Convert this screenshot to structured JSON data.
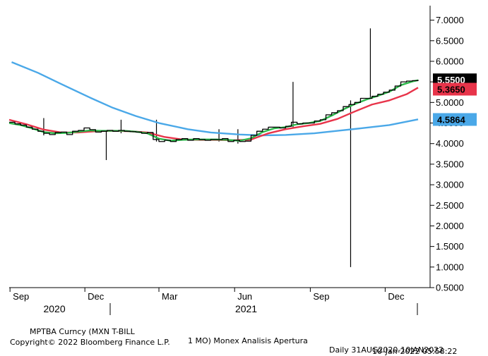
{
  "chart_data": {
    "type": "line",
    "ylim": [
      0.5,
      7.25
    ],
    "y_ticks": [
      0.5,
      1.0,
      1.5,
      2.0,
      2.5,
      3.0,
      3.5,
      4.0,
      4.5,
      5.0,
      5.5,
      6.0,
      6.5,
      7.0
    ],
    "y_tick_labels": [
      "0.5000",
      "1.0000",
      "1.5000",
      "2.0000",
      "2.5000",
      "3.0000",
      "3.5000",
      "4.0000",
      "4.5000",
      "5.0000",
      "5.5000",
      "6.0000",
      "6.5000",
      "7.0000"
    ],
    "x_range": [
      "2020-08-31",
      "2022-01-10"
    ],
    "x_ticks": [
      {
        "label": "Sep",
        "date": "2020-09-01"
      },
      {
        "label": "Dec",
        "date": "2020-12-01"
      },
      {
        "label": "Mar",
        "date": "2021-03-01"
      },
      {
        "label": "Jun",
        "date": "2021-06-01"
      },
      {
        "label": "Sep",
        "date": "2021-09-01"
      },
      {
        "label": "Dec",
        "date": "2021-12-01"
      }
    ],
    "year_labels": [
      {
        "label": "2020",
        "date": "2020-10-25"
      },
      {
        "label": "2021",
        "date": "2021-06-15"
      }
    ],
    "grid": false,
    "series": [
      {
        "color": "#000000",
        "points": [
          [
            "2020-08-31",
            4.52
          ],
          [
            "2020-09-07",
            4.48
          ],
          [
            "2020-09-14",
            4.45
          ],
          [
            "2020-09-21",
            4.4
          ],
          [
            "2020-09-28",
            4.35
          ],
          [
            "2020-10-05",
            4.3
          ],
          [
            "2020-10-12",
            4.25
          ],
          [
            "2020-10-19",
            4.22
          ],
          [
            "2020-10-26",
            4.27
          ],
          [
            "2020-11-02",
            4.28
          ],
          [
            "2020-11-09",
            4.22
          ],
          [
            "2020-11-16",
            4.3
          ],
          [
            "2020-11-23",
            4.32
          ],
          [
            "2020-11-30",
            4.38
          ],
          [
            "2020-12-07",
            4.34
          ],
          [
            "2020-12-14",
            4.28
          ],
          [
            "2020-12-21",
            4.3
          ],
          [
            "2020-12-28",
            4.32
          ],
          [
            "2021-01-04",
            4.3
          ],
          [
            "2021-01-11",
            4.32
          ],
          [
            "2021-01-18",
            4.3
          ],
          [
            "2021-01-25",
            4.29
          ],
          [
            "2021-02-01",
            4.28
          ],
          [
            "2021-02-08",
            4.25
          ],
          [
            "2021-02-15",
            4.27
          ],
          [
            "2021-02-22",
            4.1
          ],
          [
            "2021-03-01",
            4.05
          ],
          [
            "2021-03-08",
            4.08
          ],
          [
            "2021-03-15",
            4.05
          ],
          [
            "2021-03-22",
            4.1
          ],
          [
            "2021-03-29",
            4.12
          ],
          [
            "2021-04-05",
            4.08
          ],
          [
            "2021-04-12",
            4.12
          ],
          [
            "2021-04-19",
            4.1
          ],
          [
            "2021-04-26",
            4.08
          ],
          [
            "2021-05-03",
            4.1
          ],
          [
            "2021-05-10",
            4.1
          ],
          [
            "2021-05-17",
            4.12
          ],
          [
            "2021-05-24",
            4.05
          ],
          [
            "2021-05-31",
            4.08
          ],
          [
            "2021-06-07",
            4.05
          ],
          [
            "2021-06-14",
            4.06
          ],
          [
            "2021-06-21",
            4.2
          ],
          [
            "2021-06-28",
            4.3
          ],
          [
            "2021-07-05",
            4.35
          ],
          [
            "2021-07-12",
            4.4
          ],
          [
            "2021-07-19",
            4.4
          ],
          [
            "2021-07-26",
            4.38
          ],
          [
            "2021-08-02",
            4.42
          ],
          [
            "2021-08-09",
            4.52
          ],
          [
            "2021-08-16",
            4.48
          ],
          [
            "2021-08-23",
            4.5
          ],
          [
            "2021-08-30",
            4.5
          ],
          [
            "2021-09-06",
            4.55
          ],
          [
            "2021-09-13",
            4.58
          ],
          [
            "2021-09-20",
            4.7
          ],
          [
            "2021-09-27",
            4.75
          ],
          [
            "2021-10-04",
            4.8
          ],
          [
            "2021-10-11",
            4.9
          ],
          [
            "2021-10-18",
            4.95
          ],
          [
            "2021-10-25",
            5.0
          ],
          [
            "2021-11-01",
            5.1
          ],
          [
            "2021-11-08",
            5.1
          ],
          [
            "2021-11-15",
            5.15
          ],
          [
            "2021-11-22",
            5.2
          ],
          [
            "2021-11-29",
            5.25
          ],
          [
            "2021-12-06",
            5.3
          ],
          [
            "2021-12-13",
            5.4
          ],
          [
            "2021-12-20",
            5.5
          ],
          [
            "2021-12-27",
            5.52
          ],
          [
            "2022-01-03",
            5.53
          ],
          [
            "2022-01-10",
            5.55
          ]
        ]
      },
      {
        "color": "#2db84b",
        "points": [
          [
            "2020-08-31",
            4.5
          ],
          [
            "2020-09-14",
            4.45
          ],
          [
            "2020-09-28",
            4.37
          ],
          [
            "2020-10-12",
            4.28
          ],
          [
            "2020-10-26",
            4.25
          ],
          [
            "2020-11-09",
            4.26
          ],
          [
            "2020-11-23",
            4.29
          ],
          [
            "2020-12-07",
            4.32
          ],
          [
            "2020-12-21",
            4.31
          ],
          [
            "2021-01-04",
            4.31
          ],
          [
            "2021-01-18",
            4.31
          ],
          [
            "2021-02-01",
            4.29
          ],
          [
            "2021-02-15",
            4.25
          ],
          [
            "2021-03-01",
            4.12
          ],
          [
            "2021-03-15",
            4.07
          ],
          [
            "2021-03-29",
            4.09
          ],
          [
            "2021-04-12",
            4.1
          ],
          [
            "2021-04-26",
            4.1
          ],
          [
            "2021-05-10",
            4.1
          ],
          [
            "2021-05-24",
            4.09
          ],
          [
            "2021-06-07",
            4.07
          ],
          [
            "2021-06-21",
            4.13
          ],
          [
            "2021-07-05",
            4.28
          ],
          [
            "2021-07-19",
            4.37
          ],
          [
            "2021-08-02",
            4.4
          ],
          [
            "2021-08-16",
            4.47
          ],
          [
            "2021-08-30",
            4.5
          ],
          [
            "2021-09-13",
            4.55
          ],
          [
            "2021-09-27",
            4.68
          ],
          [
            "2021-10-11",
            4.83
          ],
          [
            "2021-10-25",
            4.96
          ],
          [
            "2021-11-08",
            5.07
          ],
          [
            "2021-11-22",
            5.16
          ],
          [
            "2021-12-06",
            5.26
          ],
          [
            "2021-12-20",
            5.42
          ],
          [
            "2022-01-03",
            5.51
          ],
          [
            "2022-01-10",
            5.54
          ]
        ]
      },
      {
        "color": "#e8344a",
        "points": [
          [
            "2020-08-31",
            4.58
          ],
          [
            "2020-09-21",
            4.47
          ],
          [
            "2020-10-12",
            4.34
          ],
          [
            "2020-11-02",
            4.27
          ],
          [
            "2020-11-23",
            4.27
          ],
          [
            "2020-12-14",
            4.3
          ],
          [
            "2021-01-04",
            4.31
          ],
          [
            "2021-01-25",
            4.3
          ],
          [
            "2021-02-15",
            4.27
          ],
          [
            "2021-03-08",
            4.16
          ],
          [
            "2021-03-29",
            4.1
          ],
          [
            "2021-04-19",
            4.09
          ],
          [
            "2021-05-10",
            4.09
          ],
          [
            "2021-05-31",
            4.08
          ],
          [
            "2021-06-21",
            4.1
          ],
          [
            "2021-07-12",
            4.25
          ],
          [
            "2021-08-02",
            4.35
          ],
          [
            "2021-08-23",
            4.42
          ],
          [
            "2021-09-13",
            4.48
          ],
          [
            "2021-10-04",
            4.6
          ],
          [
            "2021-10-25",
            4.78
          ],
          [
            "2021-11-15",
            4.95
          ],
          [
            "2021-12-06",
            5.05
          ],
          [
            "2021-12-27",
            5.2
          ],
          [
            "2022-01-10",
            5.36
          ]
        ]
      },
      {
        "color": "#4aa8e8",
        "points": [
          [
            "2020-09-03",
            5.98
          ],
          [
            "2020-10-05",
            5.72
          ],
          [
            "2020-11-02",
            5.45
          ],
          [
            "2020-12-07",
            5.12
          ],
          [
            "2021-01-04",
            4.87
          ],
          [
            "2021-02-01",
            4.67
          ],
          [
            "2021-03-01",
            4.5
          ],
          [
            "2021-04-05",
            4.35
          ],
          [
            "2021-05-03",
            4.27
          ],
          [
            "2021-06-07",
            4.22
          ],
          [
            "2021-07-05",
            4.2
          ],
          [
            "2021-08-02",
            4.21
          ],
          [
            "2021-09-06",
            4.25
          ],
          [
            "2021-10-04",
            4.31
          ],
          [
            "2021-11-01",
            4.37
          ],
          [
            "2021-12-06",
            4.45
          ],
          [
            "2022-01-10",
            4.59
          ]
        ]
      }
    ],
    "spikes": [
      {
        "date": "2020-10-12",
        "low": 4.2,
        "high": 4.62
      },
      {
        "date": "2020-12-27",
        "low": 3.6,
        "high": 4.3
      },
      {
        "date": "2021-01-14",
        "low": 4.25,
        "high": 4.58
      },
      {
        "date": "2021-02-26",
        "low": 4.05,
        "high": 4.58
      },
      {
        "date": "2021-05-13",
        "low": 4.05,
        "high": 4.35
      },
      {
        "date": "2021-06-05",
        "low": 4.0,
        "high": 4.35
      },
      {
        "date": "2021-08-11",
        "low": 4.4,
        "high": 5.5
      },
      {
        "date": "2021-10-20",
        "low": 1.0,
        "high": 5.05
      },
      {
        "date": "2021-11-13",
        "low": 5.1,
        "high": 6.8
      }
    ],
    "last_value_badges": [
      {
        "label": "5.5500",
        "value": 5.55,
        "bg": "#000000",
        "fg": "#ffffff"
      },
      {
        "label": "5.3650",
        "value": 5.3225,
        "bg": "#e8344a",
        "fg": "#000000"
      },
      {
        "label": "4.5864",
        "value": 4.5864,
        "bg": "#4aa8e8",
        "fg": "#000000"
      }
    ]
  },
  "footer": {
    "security": "MPTBA Curncy (MXN T-BILL",
    "tenor": "1 MO) Monex Analisis Apertura",
    "range": "Daily 31AUG2020-10JAN2022",
    "copyright": "Copyright© 2022 Bloomberg Finance L.P.",
    "timestamp": "10-Jan-2022 05:58:22"
  }
}
